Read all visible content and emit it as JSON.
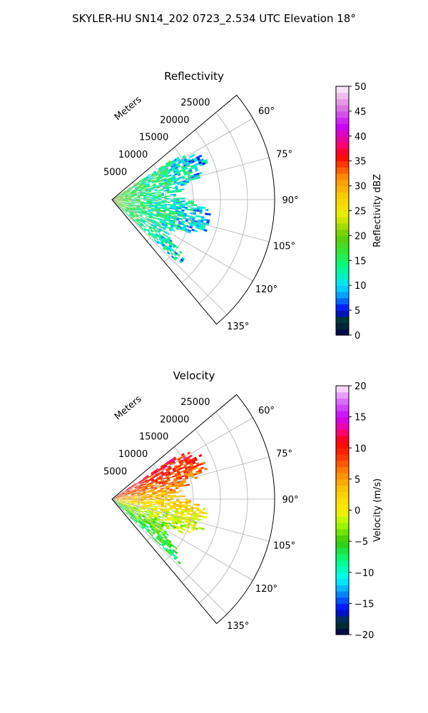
{
  "suptitle": "SKYLER-HU  SN14_202  0723_2.534 UTC Elevation 18°",
  "chart_data": [
    {
      "type": "heatmap",
      "projection": "polar-sector",
      "title": "Reflectivity",
      "radial_axis_label": "Meters",
      "radial_ticks": [
        5000,
        10000,
        15000,
        20000,
        25000
      ],
      "radial_tick_labels": [
        "5000",
        "10000",
        "15000",
        "20000",
        "25000"
      ],
      "r_max": 30000,
      "azimuth_range": [
        50,
        140
      ],
      "azimuth_ticks": [
        60,
        75,
        90,
        105,
        120,
        135
      ],
      "azimuth_tick_labels": [
        "60°",
        "75°",
        "90°",
        "105°",
        "120°",
        "135°"
      ],
      "grid": true,
      "colorbar": {
        "label": "Reflectivity dBZ",
        "range": [
          0,
          50
        ],
        "ticks": [
          0,
          5,
          10,
          15,
          20,
          25,
          30,
          35,
          40,
          45,
          50
        ],
        "tick_labels": [
          "0",
          "5",
          "10",
          "15",
          "20",
          "25",
          "30",
          "35",
          "40",
          "45",
          "50"
        ]
      },
      "field_mean": 17,
      "field_spread": 5
    },
    {
      "type": "heatmap",
      "projection": "polar-sector",
      "title": "Velocity",
      "radial_axis_label": "Meters",
      "radial_ticks": [
        5000,
        10000,
        15000,
        20000,
        25000
      ],
      "radial_tick_labels": [
        "5000",
        "10000",
        "15000",
        "20000",
        "25000"
      ],
      "r_max": 30000,
      "azimuth_range": [
        50,
        140
      ],
      "azimuth_ticks": [
        60,
        75,
        90,
        105,
        120,
        135
      ],
      "azimuth_tick_labels": [
        "60°",
        "75°",
        "90°",
        "105°",
        "120°",
        "135°"
      ],
      "grid": true,
      "colorbar": {
        "label": "Velocity (m/s)",
        "range": [
          -20,
          20
        ],
        "ticks": [
          -20,
          -15,
          -10,
          -5,
          0,
          5,
          10,
          15,
          20
        ],
        "tick_labels": [
          "−20",
          "−15",
          "−10",
          "−5",
          "0",
          "5",
          "10",
          "15",
          "20"
        ]
      },
      "field_mean": 3,
      "field_spread": 3
    }
  ]
}
